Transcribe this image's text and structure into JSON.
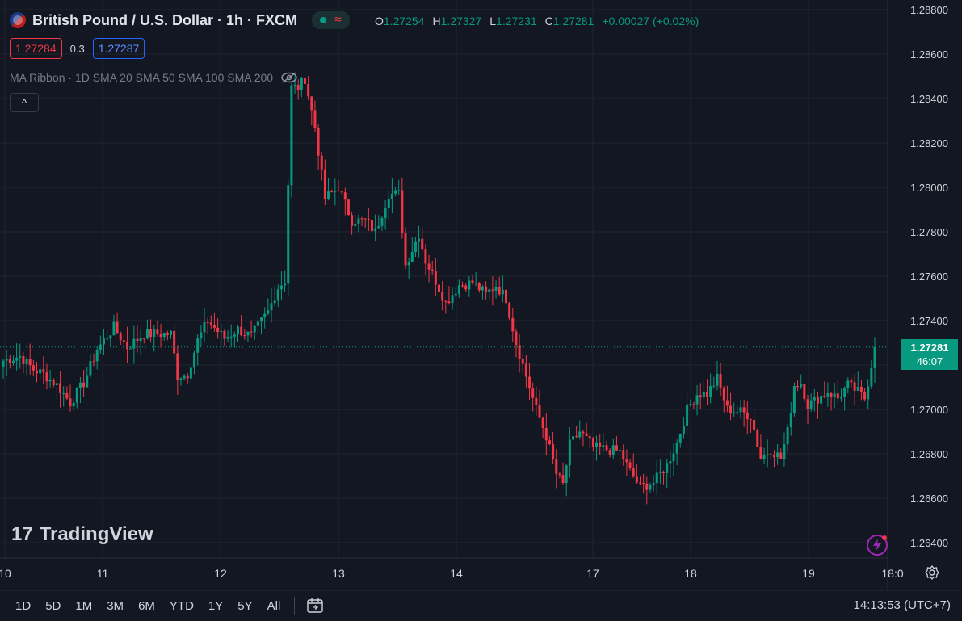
{
  "header": {
    "title": "British Pound / U.S. Dollar · 1h · FXCM",
    "ohlc": [
      {
        "label": "O",
        "value": "1.27254"
      },
      {
        "label": "H",
        "value": "1.27327"
      },
      {
        "label": "L",
        "value": "1.27231"
      },
      {
        "label": "C",
        "value": "1.27281"
      }
    ],
    "change": "+0.00027 (+0.02%)",
    "sell_price": "1.27284",
    "spread": "0.3",
    "buy_price": "1.27287",
    "indicator": "MA Ribbon · 1D SMA 20 SMA 50 SMA 100 SMA 200",
    "collapse_glyph": "^",
    "wave_glyph": "≈"
  },
  "brand": {
    "logo_text": "TradingView",
    "logo_mark": "17"
  },
  "price_tag": {
    "price": "1.27281",
    "countdown": "46:07"
  },
  "bottom_bar": {
    "ranges": [
      "1D",
      "5D",
      "1M",
      "3M",
      "6M",
      "YTD",
      "1Y",
      "5Y",
      "All"
    ],
    "clock": "14:13:53 (UTC+7)"
  },
  "colors": {
    "background": "#131722",
    "up": "#089981",
    "down": "#f23645",
    "grid": "#1f2430",
    "text": "#d1d4dc"
  },
  "icons": [
    "flag-icon",
    "eye-off-icon",
    "chevron-up-icon",
    "calendar-icon",
    "settings-icon",
    "flash-icon"
  ],
  "chart_data": {
    "type": "candlestick",
    "ylim": [
      1.263,
      1.288
    ],
    "y_ticks": [
      "1.26400",
      "1.26600",
      "1.26800",
      "1.27000",
      "1.27200",
      "1.27400",
      "1.27600",
      "1.27800",
      "1.28000",
      "1.28200",
      "1.28400",
      "1.28600",
      "1.28800"
    ],
    "x_ticks": [
      "10",
      "11",
      "12",
      "13",
      "14",
      "17",
      "18",
      "19",
      "18:0"
    ],
    "last_price": 1.27281,
    "anchors": [
      [
        0,
        1.2722
      ],
      [
        5,
        1.2724
      ],
      [
        9,
        1.2718
      ],
      [
        12,
        1.2716
      ],
      [
        16,
        1.2711
      ],
      [
        20,
        1.2703
      ],
      [
        24,
        1.2712
      ],
      [
        28,
        1.2727
      ],
      [
        33,
        1.2737
      ],
      [
        37,
        1.2728
      ],
      [
        42,
        1.2734
      ],
      [
        46,
        1.2734
      ],
      [
        50,
        1.2734
      ],
      [
        52,
        1.2715
      ],
      [
        55,
        1.2716
      ],
      [
        58,
        1.2731
      ],
      [
        61,
        1.274
      ],
      [
        66,
        1.2732
      ],
      [
        70,
        1.2736
      ],
      [
        74,
        1.2733
      ],
      [
        79,
        1.2744
      ],
      [
        82,
        1.2755
      ],
      [
        84,
        1.2758
      ],
      [
        86,
        1.2845
      ],
      [
        88,
        1.2845
      ],
      [
        90,
        1.2849
      ],
      [
        93,
        1.2827
      ],
      [
        96,
        1.2795
      ],
      [
        100,
        1.28
      ],
      [
        104,
        1.2785
      ],
      [
        108,
        1.2785
      ],
      [
        111,
        1.278
      ],
      [
        115,
        1.2797
      ],
      [
        118,
        1.2797
      ],
      [
        120,
        1.2765
      ],
      [
        124,
        1.2779
      ],
      [
        126,
        1.2767
      ],
      [
        129,
        1.2758
      ],
      [
        132,
        1.2748
      ],
      [
        136,
        1.2756
      ],
      [
        140,
        1.2757
      ],
      [
        144,
        1.2752
      ],
      [
        147,
        1.2756
      ],
      [
        150,
        1.275
      ],
      [
        153,
        1.273
      ],
      [
        156,
        1.2715
      ],
      [
        159,
        1.27
      ],
      [
        162,
        1.2688
      ],
      [
        165,
        1.2671
      ],
      [
        167,
        1.2666
      ],
      [
        169,
        1.2684
      ],
      [
        172,
        1.269
      ],
      [
        176,
        1.2683
      ],
      [
        180,
        1.2682
      ],
      [
        184,
        1.2681
      ],
      [
        187,
        1.2672
      ],
      [
        190,
        1.2665
      ],
      [
        194,
        1.2667
      ],
      [
        198,
        1.2675
      ],
      [
        201,
        1.2685
      ],
      [
        204,
        1.27
      ],
      [
        207,
        1.2707
      ],
      [
        210,
        1.2707
      ],
      [
        213,
        1.2714
      ],
      [
        216,
        1.27
      ],
      [
        220,
        1.2699
      ],
      [
        223,
        1.2697
      ],
      [
        226,
        1.2678
      ],
      [
        229,
        1.2682
      ],
      [
        232,
        1.2678
      ],
      [
        234,
        1.269
      ],
      [
        236,
        1.2711
      ],
      [
        238,
        1.2712
      ],
      [
        240,
        1.2702
      ],
      [
        243,
        1.2705
      ],
      [
        246,
        1.2708
      ],
      [
        249,
        1.2705
      ],
      [
        252,
        1.2711
      ],
      [
        255,
        1.2708
      ],
      [
        257,
        1.2705
      ],
      [
        259,
        1.272
      ],
      [
        260,
        1.2728
      ]
    ],
    "count": 261
  }
}
